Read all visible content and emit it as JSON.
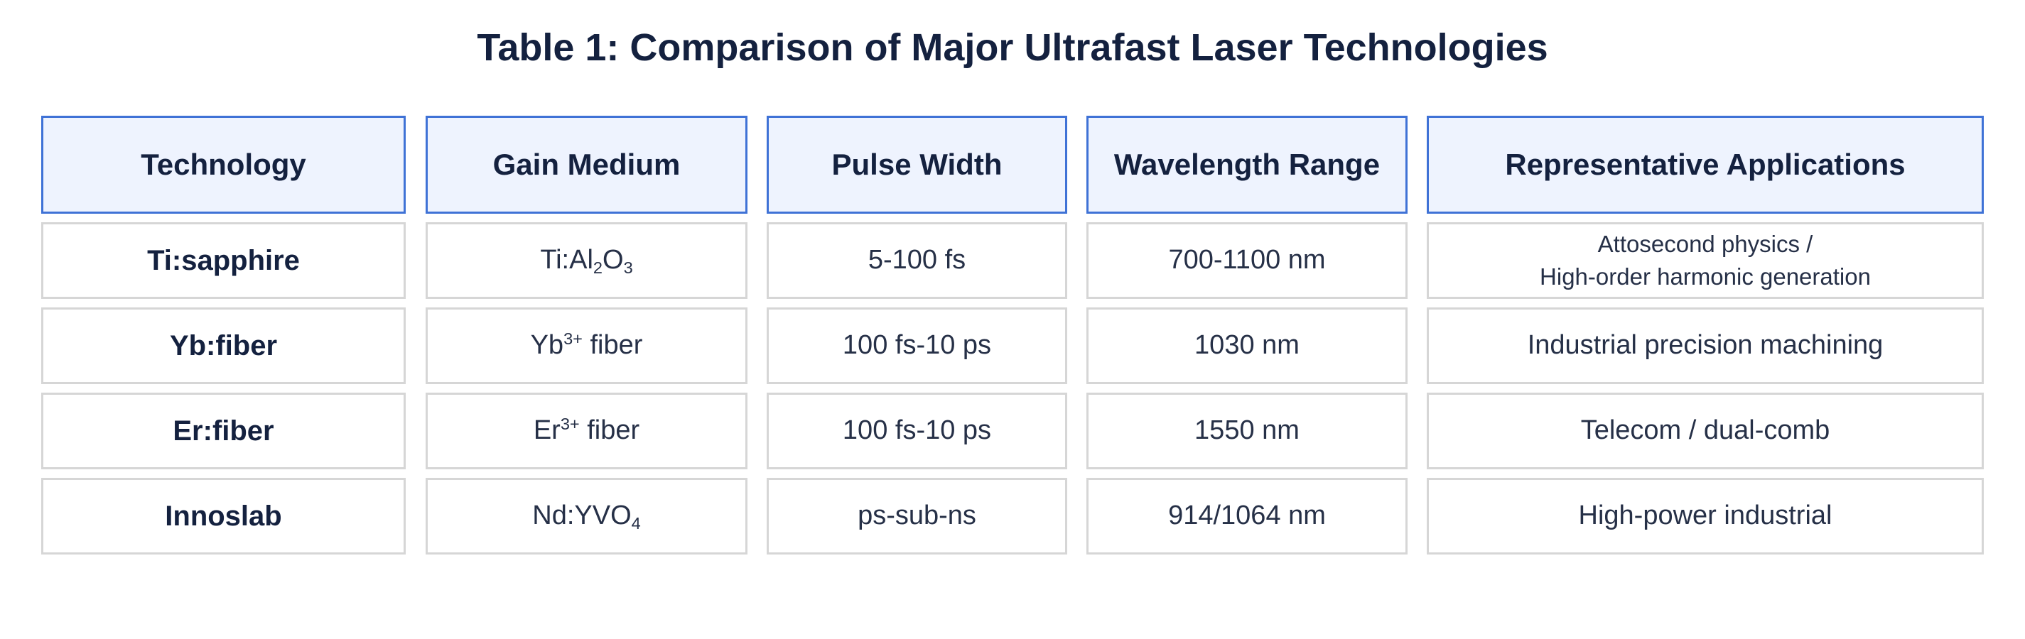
{
  "title": "Table 1: Comparison of Major Ultrafast Laser Technologies",
  "columns": [
    "Technology",
    "Gain Medium",
    "Pulse Width",
    "Wavelength Range",
    "Representative Applications"
  ],
  "rows": [
    {
      "technology": "Ti:sapphire",
      "gain_medium": {
        "parts": [
          {
            "t": "Ti:Al"
          },
          {
            "t": "2",
            "s": "sub"
          },
          {
            "t": "O"
          },
          {
            "t": "3",
            "s": "sub"
          }
        ]
      },
      "pulse_width": "5-100 fs",
      "wavelength": "700-1100 nm",
      "applications": [
        "Attosecond physics /",
        "High-order harmonic generation"
      ]
    },
    {
      "technology": "Yb:fiber",
      "gain_medium": {
        "parts": [
          {
            "t": "Yb"
          },
          {
            "t": "3+",
            "s": "sup"
          },
          {
            "t": " fiber"
          }
        ]
      },
      "pulse_width": "100 fs-10 ps",
      "wavelength": "1030 nm",
      "applications": [
        "Industrial precision machining"
      ]
    },
    {
      "technology": "Er:fiber",
      "gain_medium": {
        "parts": [
          {
            "t": "Er"
          },
          {
            "t": "3+",
            "s": "sup"
          },
          {
            "t": " fiber"
          }
        ]
      },
      "pulse_width": "100 fs-10 ps",
      "wavelength": "1550 nm",
      "applications": [
        "Telecom / dual-comb"
      ]
    },
    {
      "technology": "Innoslab",
      "gain_medium": {
        "parts": [
          {
            "t": "Nd:YVO"
          },
          {
            "t": "4",
            "s": "sub"
          }
        ]
      },
      "pulse_width": "ps-sub-ns",
      "wavelength": "914/1064 nm",
      "applications": [
        "High-power industrial"
      ]
    }
  ]
}
